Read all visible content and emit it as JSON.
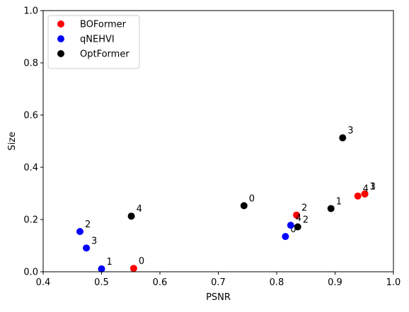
{
  "chart_data": {
    "type": "scatter",
    "xlabel": "PSNR",
    "ylabel": "Size",
    "xlim": [
      0.4,
      1.0
    ],
    "ylim": [
      0.0,
      1.0
    ],
    "xticks": [
      "0.4",
      "0.5",
      "0.6",
      "0.7",
      "0.8",
      "0.9",
      "1.0"
    ],
    "yticks": [
      "0.0",
      "0.2",
      "0.4",
      "0.6",
      "0.8",
      "1.0"
    ],
    "grid": false,
    "legend_position": "top-left",
    "series": [
      {
        "name": "BOFormer",
        "color": "#ff0000",
        "points": [
          {
            "x": 0.555,
            "y": 0.013,
            "label": "0"
          },
          {
            "x": 0.951,
            "y": 0.298,
            "label": "1"
          },
          {
            "x": 0.834,
            "y": 0.217,
            "label": "2"
          },
          {
            "x": 0.951,
            "y": 0.298,
            "label": "3"
          },
          {
            "x": 0.939,
            "y": 0.29,
            "label": "4"
          }
        ]
      },
      {
        "name": "qNEHVI",
        "color": "#0000ff",
        "points": [
          {
            "x": 0.815,
            "y": 0.135,
            "label": "0"
          },
          {
            "x": 0.5,
            "y": 0.011,
            "label": "1"
          },
          {
            "x": 0.463,
            "y": 0.154,
            "label": "2"
          },
          {
            "x": 0.474,
            "y": 0.091,
            "label": "3"
          },
          {
            "x": 0.824,
            "y": 0.178,
            "label": "4"
          }
        ]
      },
      {
        "name": "OptFormer",
        "color": "#000000",
        "points": [
          {
            "x": 0.744,
            "y": 0.253,
            "label": "0"
          },
          {
            "x": 0.893,
            "y": 0.242,
            "label": "1"
          },
          {
            "x": 0.836,
            "y": 0.172,
            "label": "2"
          },
          {
            "x": 0.913,
            "y": 0.513,
            "label": "3"
          },
          {
            "x": 0.551,
            "y": 0.213,
            "label": "4"
          }
        ]
      }
    ]
  }
}
